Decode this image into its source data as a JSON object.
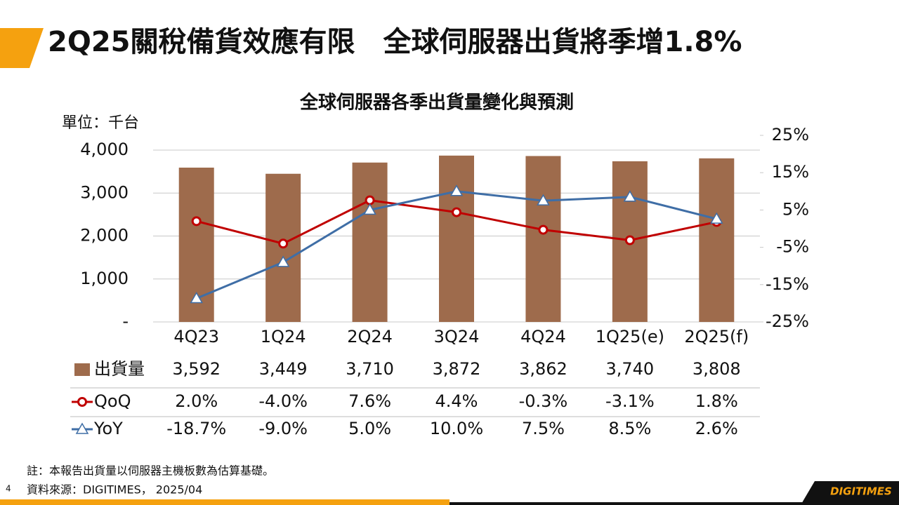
{
  "slide": {
    "title": "2Q25關稅備貨效應有限　全球伺服器出貨將季增1.8%",
    "page_number": "4",
    "logo": "DIGITIMES"
  },
  "chart_data": {
    "type": "bar",
    "title": "全球伺服器各季出貨量變化與預測",
    "y_label": "單位：千台",
    "categories": [
      "4Q23",
      "1Q24",
      "2Q24",
      "3Q24",
      "4Q24",
      "1Q25(e)",
      "2Q25(f)"
    ],
    "series": [
      {
        "name": "出貨量",
        "type": "bar",
        "color": "#9e6b4c",
        "values": [
          3592,
          3449,
          3710,
          3872,
          3862,
          3740,
          3808
        ],
        "value_labels": [
          "3,592",
          "3,449",
          "3,710",
          "3,872",
          "3,862",
          "3,740",
          "3,808"
        ]
      },
      {
        "name": "QoQ",
        "type": "line",
        "axis": "y2",
        "color": "#c00000",
        "marker": "circle",
        "values": [
          2.0,
          -4.0,
          7.6,
          4.4,
          -0.3,
          -3.1,
          1.8
        ],
        "value_labels": [
          "2.0%",
          "-4.0%",
          "7.6%",
          "4.4%",
          "-0.3%",
          "-3.1%",
          "1.8%"
        ]
      },
      {
        "name": "YoY",
        "type": "line",
        "axis": "y2",
        "color": "#3f6ea6",
        "marker": "triangle",
        "values": [
          -18.7,
          -9.0,
          5.0,
          10.0,
          7.5,
          8.5,
          2.6
        ],
        "value_labels": [
          "-18.7%",
          "-9.0%",
          "5.0%",
          "10.0%",
          "7.5%",
          "8.5%",
          "2.6%"
        ]
      }
    ],
    "ylim": [
      0,
      4000
    ],
    "yticks": [
      {
        "value": 0,
        "label": "-"
      },
      {
        "value": 1000,
        "label": "1,000"
      },
      {
        "value": 2000,
        "label": "2,000"
      },
      {
        "value": 3000,
        "label": "3,000"
      },
      {
        "value": 4000,
        "label": "4,000"
      }
    ],
    "y2lim": [
      -25,
      25
    ],
    "y2ticks": [
      {
        "value": -25,
        "label": "-25%"
      },
      {
        "value": -15,
        "label": "-15%"
      },
      {
        "value": -5,
        "label": "-5%"
      },
      {
        "value": 5,
        "label": "5%"
      },
      {
        "value": 15,
        "label": "15%"
      },
      {
        "value": 25,
        "label": "25%"
      }
    ],
    "grid": true
  },
  "notes": [
    "註：本報告出貨量以伺服器主機板數為估算基礎。",
    "資料來源：DIGITIMES， 2025/04"
  ]
}
